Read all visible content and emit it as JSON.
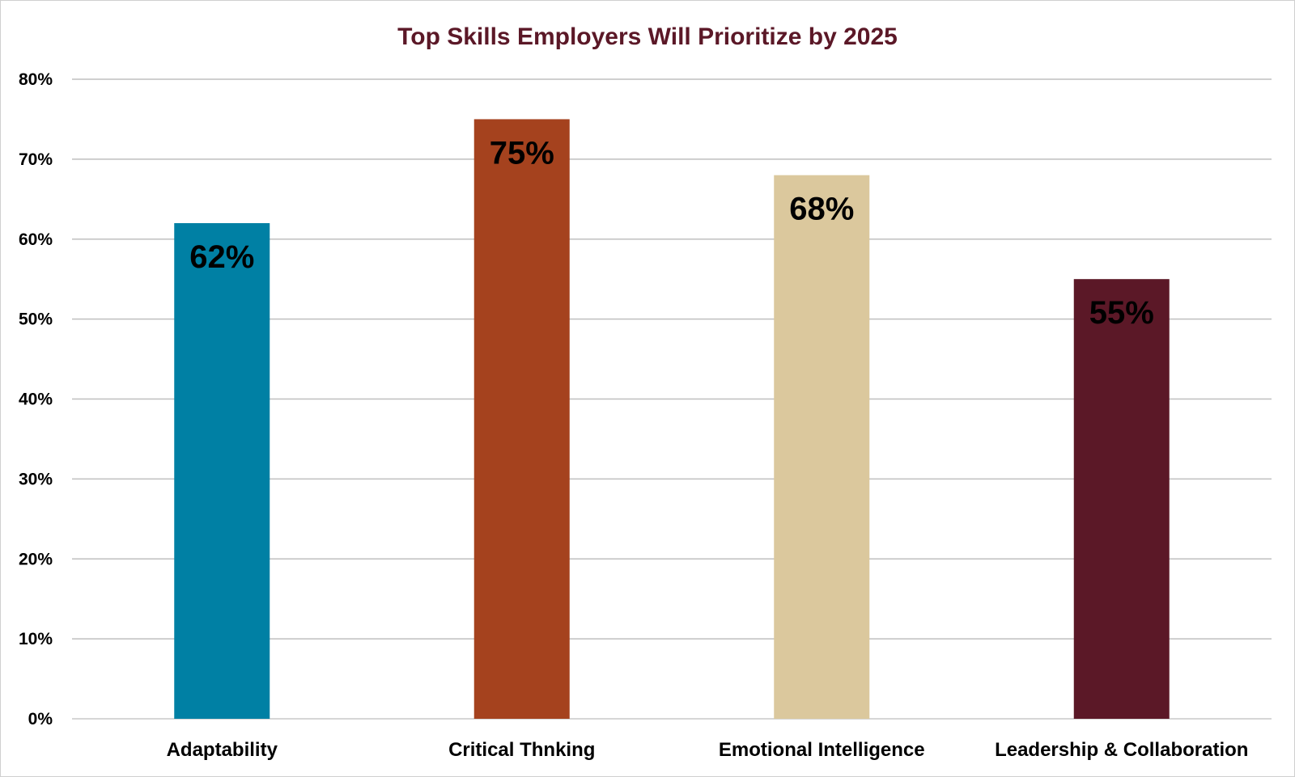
{
  "chart_data": {
    "type": "bar",
    "title": "Top Skills Employers Will Prioritize by 2025",
    "categories": [
      "Adaptability",
      "Critical Thnking",
      "Emotional Intelligence",
      "Leadership & Collaboration"
    ],
    "values": [
      62,
      75,
      68,
      55
    ],
    "data_labels": [
      "62%",
      "75%",
      "68%",
      "55%"
    ],
    "bar_colors": [
      "#0080A4",
      "#A5421E",
      "#DBC89D",
      "#5B1827"
    ],
    "title_color": "#5B1827",
    "ylim": [
      0,
      80
    ],
    "y_ticks": [
      0,
      10,
      20,
      30,
      40,
      50,
      60,
      70,
      80
    ],
    "y_tick_labels": [
      "0%",
      "10%",
      "20%",
      "30%",
      "40%",
      "50%",
      "60%",
      "70%",
      "80%"
    ],
    "xlabel": "",
    "ylabel": "",
    "grid": true,
    "legend": "none"
  }
}
